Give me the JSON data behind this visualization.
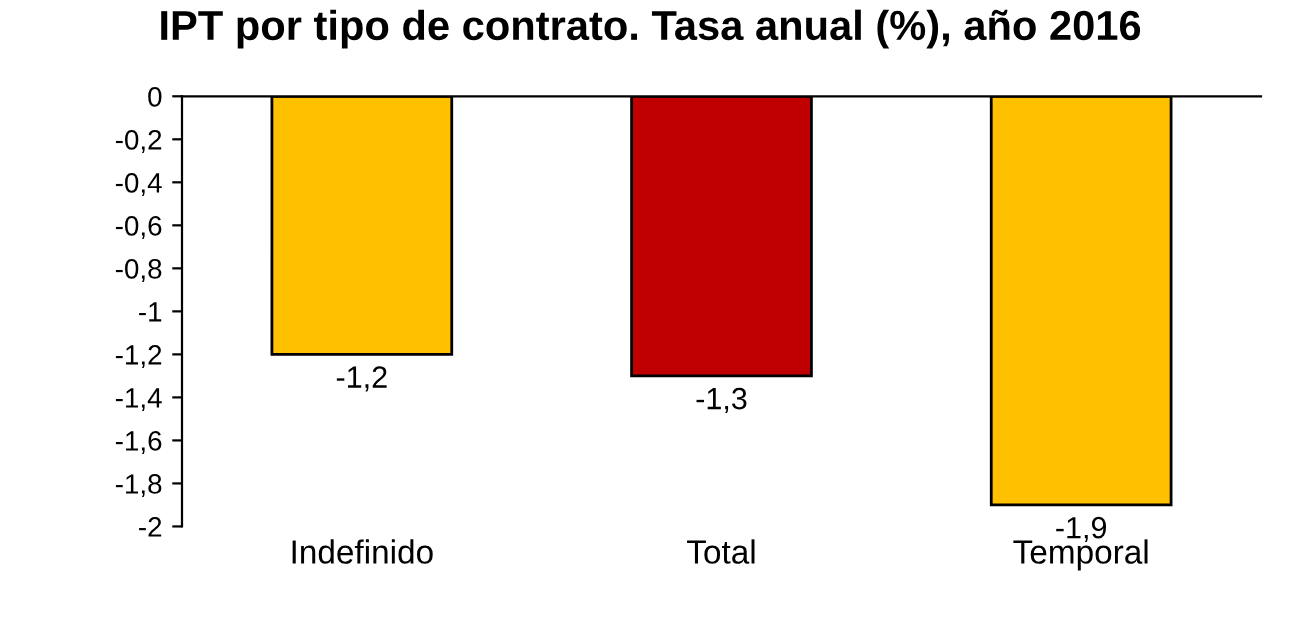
{
  "chart_data": {
    "type": "bar",
    "title": "IPT por tipo de contrato. Tasa anual (%), año 2016",
    "categories": [
      "Indefinido",
      "Total",
      "Temporal"
    ],
    "values": [
      -1.2,
      -1.3,
      -1.9
    ],
    "colors": [
      "#ffc000",
      "#c00000",
      "#ffc000"
    ],
    "value_labels": [
      "-1,2",
      "-1,3",
      "-1,9"
    ],
    "ylim": [
      -2,
      0
    ],
    "yticks": [
      {
        "value": 0,
        "label": "0"
      },
      {
        "value": -0.2,
        "label": "-0,2"
      },
      {
        "value": -0.4,
        "label": "-0,4"
      },
      {
        "value": -0.6,
        "label": "-0,6"
      },
      {
        "value": -0.8,
        "label": "-0,8"
      },
      {
        "value": -1,
        "label": "-1"
      },
      {
        "value": -1.2,
        "label": "-1,2"
      },
      {
        "value": -1.4,
        "label": "-1,4"
      },
      {
        "value": -1.6,
        "label": "-1,6"
      },
      {
        "value": -1.8,
        "label": "-1,8"
      },
      {
        "value": -2,
        "label": "-2"
      }
    ],
    "grid": false,
    "legend": false
  }
}
